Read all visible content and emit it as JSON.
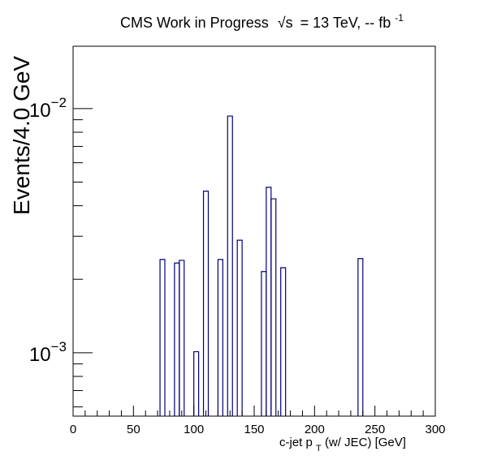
{
  "chart_data": {
    "type": "histogram",
    "title_main": "CMS Work in Progress",
    "title_sqrt": "√s",
    "title_rest": "= 13 TeV, -- fb",
    "title_sup": "-1",
    "ylabel": "Events/4.0 GeV",
    "xlabel_pre": "c-jet p",
    "xlabel_sub": "T",
    "xlabel_post": " (w/ JEC) [GeV]",
    "xlim": [
      0,
      300
    ],
    "ylim": [
      0.00055,
      0.018
    ],
    "yscale": "log",
    "bin_width": 4.0,
    "xticks": [
      0,
      50,
      100,
      150,
      200,
      250,
      300
    ],
    "yticks": [
      {
        "value": 0.01,
        "base": "10",
        "exp": "−2"
      },
      {
        "value": 0.001,
        "base": "10",
        "exp": "−3"
      }
    ],
    "bins": [
      {
        "x0": 72,
        "x1": 76,
        "value": 0.00241
      },
      {
        "x0": 84,
        "x1": 88,
        "value": 0.00233
      },
      {
        "x0": 88,
        "x1": 92,
        "value": 0.00239
      },
      {
        "x0": 100,
        "x1": 104,
        "value": 0.00101
      },
      {
        "x0": 108,
        "x1": 112,
        "value": 0.00459
      },
      {
        "x0": 120,
        "x1": 124,
        "value": 0.00241
      },
      {
        "x0": 128,
        "x1": 132,
        "value": 0.00932
      },
      {
        "x0": 136,
        "x1": 140,
        "value": 0.00289
      },
      {
        "x0": 156,
        "x1": 160,
        "value": 0.00215
      },
      {
        "x0": 160,
        "x1": 164,
        "value": 0.00476
      },
      {
        "x0": 164,
        "x1": 168,
        "value": 0.00427
      },
      {
        "x0": 172,
        "x1": 176,
        "value": 0.00223
      },
      {
        "x0": 236,
        "x1": 240,
        "value": 0.00243
      }
    ],
    "line_color": "#000080",
    "grid": false
  }
}
